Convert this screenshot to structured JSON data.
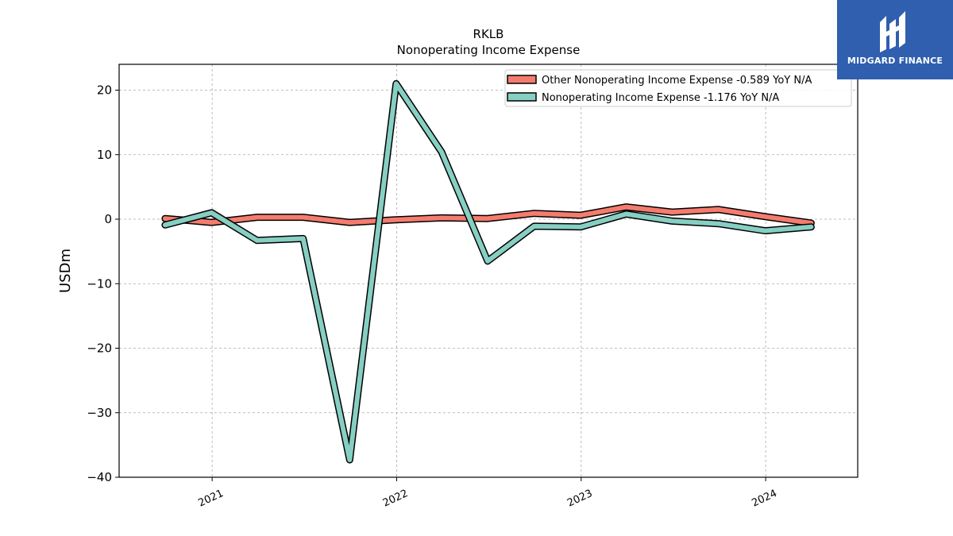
{
  "chart_data": {
    "type": "line",
    "title": "RKLB",
    "subtitle": "Nonoperating Income Expense",
    "xlabel": "",
    "ylabel": "USDm",
    "ylim": [
      -40,
      24
    ],
    "yticks": [
      20,
      10,
      0,
      -10,
      -20,
      -30,
      -40
    ],
    "ytick_labels": [
      "20",
      "10",
      "0",
      "−10",
      "−20",
      "−30",
      "−40"
    ],
    "xlim": [
      "2020-07-01",
      "2024-07-01"
    ],
    "xticks": [
      "2021-01-01",
      "2022-01-01",
      "2023-01-01",
      "2024-01-01"
    ],
    "xtick_labels": [
      "2021",
      "2022",
      "2023",
      "2024"
    ],
    "grid": true,
    "legend_position": "top-right",
    "x": [
      "2020-09-30",
      "2020-12-31",
      "2021-03-31",
      "2021-06-30",
      "2021-09-30",
      "2021-12-31",
      "2022-03-31",
      "2022-06-30",
      "2022-09-30",
      "2022-12-31",
      "2023-03-31",
      "2023-06-30",
      "2023-09-30",
      "2023-12-31",
      "2024-03-31"
    ],
    "series": [
      {
        "name": "Other Nonoperating Income Expense",
        "legend_label": "Other Nonoperating Income Expense  -0.589 YoY N/A",
        "color": "#f47c6e",
        "values": [
          0.1,
          -0.5,
          0.3,
          0.3,
          -0.5,
          -0.1,
          0.2,
          0.1,
          0.9,
          0.6,
          1.9,
          1.1,
          1.5,
          0.4,
          -0.6
        ]
      },
      {
        "name": "Nonoperating Income Expense",
        "legend_label": "Nonoperating Income Expense  -1.176 YoY N/A",
        "color": "#86cfc2",
        "values": [
          -0.9,
          1.0,
          -3.3,
          -3.0,
          -37.3,
          21.0,
          10.4,
          -6.5,
          -1.1,
          -1.2,
          0.8,
          -0.3,
          -0.7,
          -1.8,
          -1.2
        ]
      }
    ]
  },
  "logo": {
    "text": "MIDGARD FINANCE"
  }
}
